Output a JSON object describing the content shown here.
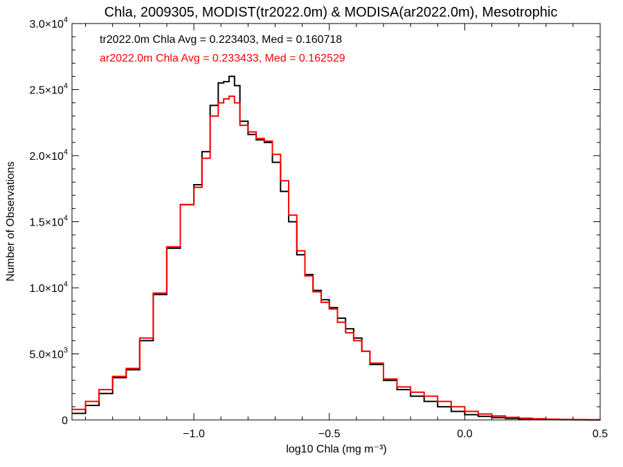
{
  "chart_data": {
    "type": "line",
    "title": "Chla, 2009305, MODIST(tr2022.0m) & MODISA(ar2022.0m), Mesotrophic",
    "xlabel": "log10 Chla (mg m⁻³)",
    "ylabel": "Number of Observations",
    "xlim": [
      -1.45,
      0.5
    ],
    "ylim": [
      0,
      30000
    ],
    "x_ticks": [
      {
        "value": -1.0,
        "label": "−1.0"
      },
      {
        "value": -0.5,
        "label": "−0.5"
      },
      {
        "value": 0.0,
        "label": "0.0"
      },
      {
        "value": 0.5,
        "label": "0.5"
      }
    ],
    "y_ticks": [
      {
        "value": 0,
        "mantissa": "0",
        "exp": ""
      },
      {
        "value": 5000,
        "mantissa": "5.0×10",
        "exp": "3"
      },
      {
        "value": 10000,
        "mantissa": "1.0×10",
        "exp": "4"
      },
      {
        "value": 15000,
        "mantissa": "1.5×10",
        "exp": "4"
      },
      {
        "value": 20000,
        "mantissa": "2.0×10",
        "exp": "4"
      },
      {
        "value": 25000,
        "mantissa": "2.5×10",
        "exp": "4"
      },
      {
        "value": 30000,
        "mantissa": "3.0×10",
        "exp": "4"
      }
    ],
    "annotations": [
      {
        "text": "tr2022.0m Chla Avg = 0.223403, Med = 0.160718",
        "color": "#000000"
      },
      {
        "text": "ar2022.0m Chla Avg = 0.233433, Med = 0.162529",
        "color": "#ff0000"
      }
    ],
    "series": [
      {
        "color": "#000000",
        "x": [
          -1.45,
          -1.4,
          -1.35,
          -1.3,
          -1.25,
          -1.2,
          -1.15,
          -1.1,
          -1.05,
          -1.0,
          -0.97,
          -0.94,
          -0.91,
          -0.89,
          -0.87,
          -0.85,
          -0.83,
          -0.8,
          -0.77,
          -0.74,
          -0.71,
          -0.68,
          -0.65,
          -0.62,
          -0.59,
          -0.56,
          -0.53,
          -0.5,
          -0.47,
          -0.44,
          -0.41,
          -0.38,
          -0.35,
          -0.3,
          -0.25,
          -0.2,
          -0.15,
          -0.1,
          -0.05,
          0.0,
          0.05,
          0.1,
          0.15,
          0.2,
          0.25,
          0.3,
          0.35,
          0.4,
          0.45,
          0.5
        ],
        "y": [
          500,
          1100,
          2000,
          3200,
          3800,
          6000,
          9500,
          13000,
          16300,
          17800,
          20300,
          23800,
          25500,
          25600,
          26000,
          25300,
          22600,
          21600,
          21200,
          21000,
          19500,
          17300,
          15000,
          12500,
          11000,
          9800,
          9100,
          8500,
          7700,
          6900,
          6200,
          5200,
          4200,
          3000,
          2300,
          1800,
          1400,
          1000,
          650,
          400,
          280,
          180,
          120,
          80,
          55,
          35,
          20,
          10,
          5,
          0
        ]
      },
      {
        "color": "#ff0000",
        "x": [
          -1.45,
          -1.4,
          -1.35,
          -1.3,
          -1.25,
          -1.2,
          -1.15,
          -1.1,
          -1.05,
          -1.0,
          -0.97,
          -0.94,
          -0.91,
          -0.89,
          -0.87,
          -0.85,
          -0.83,
          -0.8,
          -0.77,
          -0.74,
          -0.71,
          -0.68,
          -0.65,
          -0.62,
          -0.59,
          -0.56,
          -0.53,
          -0.5,
          -0.47,
          -0.44,
          -0.41,
          -0.38,
          -0.35,
          -0.3,
          -0.25,
          -0.2,
          -0.15,
          -0.1,
          -0.05,
          0.0,
          0.05,
          0.1,
          0.15,
          0.2,
          0.25,
          0.3,
          0.35,
          0.4,
          0.45,
          0.5
        ],
        "y": [
          800,
          1400,
          2300,
          3300,
          3900,
          6200,
          9600,
          13100,
          16300,
          17600,
          19800,
          23000,
          24000,
          24300,
          24500,
          24000,
          22300,
          21800,
          21300,
          21100,
          20100,
          18100,
          15500,
          12800,
          10900,
          9700,
          8900,
          8400,
          7400,
          6600,
          6000,
          5200,
          4300,
          3100,
          2500,
          2100,
          1800,
          1400,
          1000,
          650,
          450,
          300,
          200,
          130,
          90,
          60,
          40,
          25,
          10,
          0
        ]
      }
    ]
  }
}
